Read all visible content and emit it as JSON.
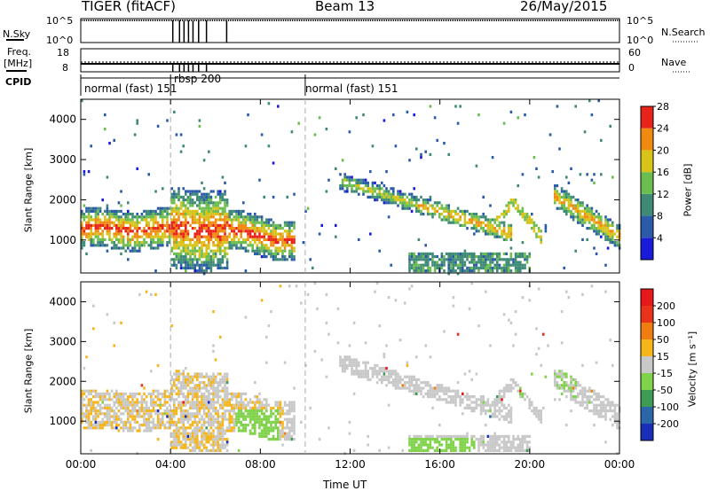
{
  "header": {
    "radar": "TIGER (fitACF)",
    "beam": "Beam 13",
    "date": "26/May/2015"
  },
  "param_panel": {
    "nsky_label": "N.Sky",
    "nsky_ticks": [
      "10^5",
      "10^0"
    ],
    "nsearch_label": "N.Search",
    "nsearch_ticks": [
      "10^5",
      "10^0"
    ],
    "freq_label_line1": "Freq.",
    "freq_label_line2": "[MHz]",
    "freq_ticks": [
      "18",
      "8"
    ],
    "nave_label": "Nave",
    "nave_ticks": [
      "60",
      "0"
    ],
    "cpid_label": "CPID",
    "cpid_segments": [
      {
        "text": "normal (fast) 151",
        "start_h": 0,
        "end_h": 4
      },
      {
        "text": "rbsp 200",
        "start_h": 4,
        "end_h": 10
      },
      {
        "text": "normal (fast) 151",
        "start_h": 10,
        "end_h": 24
      }
    ]
  },
  "chart_data": [
    {
      "type": "heatmap",
      "quantity": "Power",
      "ylabel": "Slant Range [km]",
      "yticks": [
        1000,
        2000,
        3000,
        4000
      ],
      "ylim": [
        180,
        4500
      ],
      "xlim_hours": [
        0,
        24
      ],
      "colorbar_label": "Power [dB]",
      "colorbar_ticks": [
        "4",
        "8",
        "12",
        "16",
        "20",
        "24",
        "28"
      ],
      "colorbar_colors": [
        "#1a1adb",
        "#2a5aa8",
        "#3e8a76",
        "#6cbd50",
        "#d8c31a",
        "#f18a10",
        "#e8231a"
      ]
    },
    {
      "type": "heatmap",
      "quantity": "Velocity",
      "ylabel": "Slant Range [km]",
      "yticks": [
        1000,
        2000,
        3000,
        4000
      ],
      "ylim": [
        180,
        4500
      ],
      "xlim_hours": [
        0,
        24
      ],
      "xlabel": "Time UT",
      "xticks": [
        "00:00",
        "04:00",
        "08:00",
        "12:00",
        "16:00",
        "20:00",
        "00:00"
      ],
      "colorbar_label": "Velocity [m s⁻¹]",
      "colorbar_ticks": [
        "200",
        "100",
        "50",
        "15",
        "-15",
        "-50",
        "-100",
        "-200"
      ],
      "colorbar_colors": [
        "#1a2fb8",
        "#2a66a8",
        "#3f9a55",
        "#7fd24a",
        "#c8c8c8",
        "#f5b61c",
        "#f07d12",
        "#e8321a",
        "#e8171a"
      ]
    }
  ]
}
